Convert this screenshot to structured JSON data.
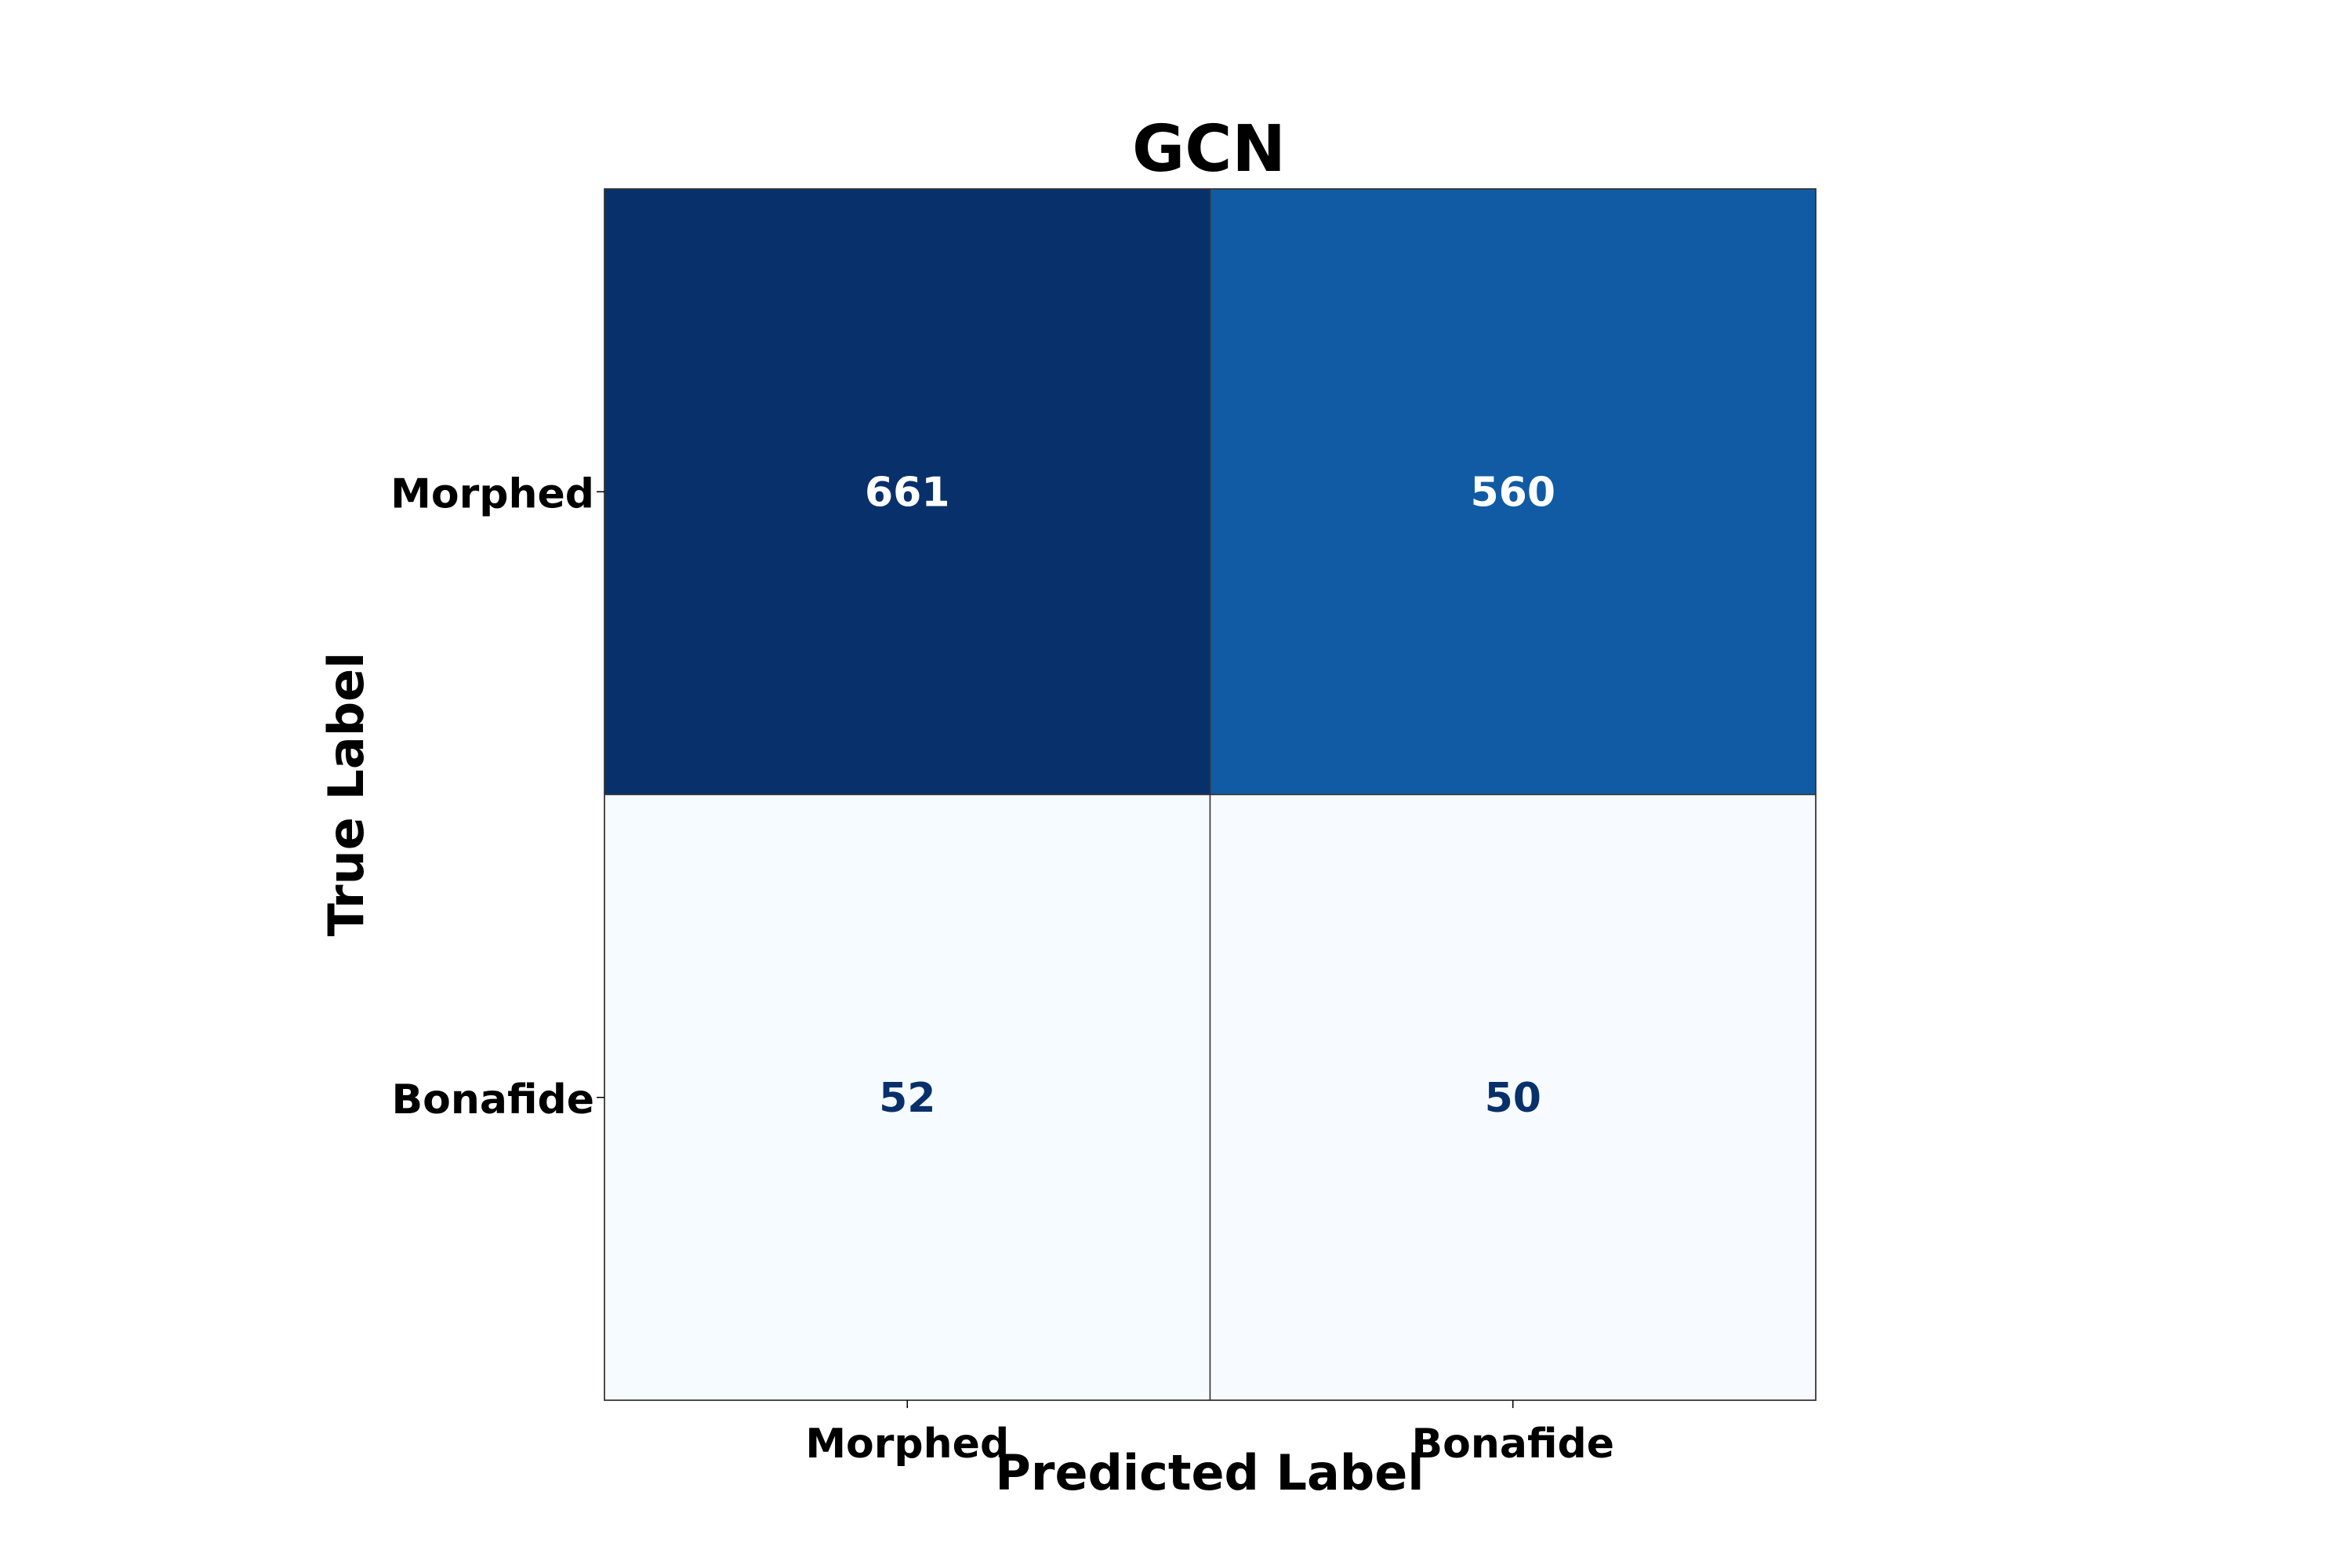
{
  "chart_data": {
    "type": "heatmap",
    "title": "GCN",
    "xlabel": "Predicted Label",
    "ylabel": "True Label",
    "x_categories": [
      "Morphed",
      "Bonafide"
    ],
    "y_categories": [
      "Morphed",
      "Bonafide"
    ],
    "values": [
      [
        661,
        560
      ],
      [
        52,
        50
      ]
    ],
    "colormap": "Blues",
    "color_range": [
      50,
      661
    ],
    "colors": {
      "max": "#08306b",
      "mid": "#0f5ba7",
      "min": "#f7fbff",
      "text_on_dark": "#ffffff",
      "text_on_light": "#08306b"
    },
    "grid": false,
    "legend": "none"
  }
}
